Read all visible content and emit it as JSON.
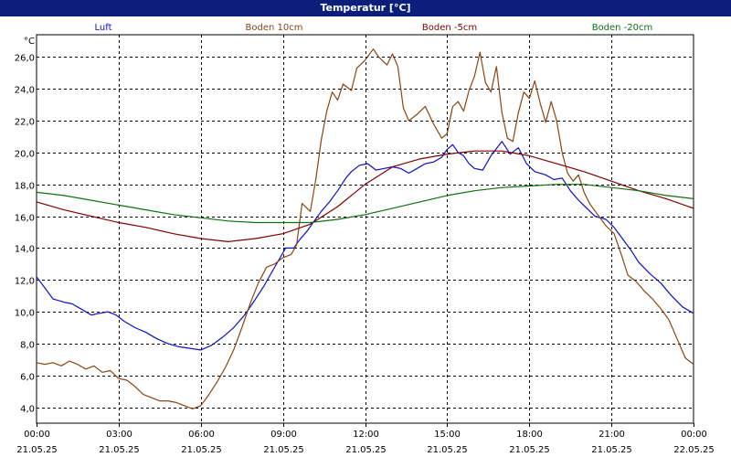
{
  "window": {
    "title": "Temperatur [°C]"
  },
  "chart_data": {
    "type": "line",
    "title": "Temperatur [°C]",
    "ylabel": "°C",
    "xlabel": "",
    "ylim": [
      3.0,
      27.4
    ],
    "xlim": [
      0,
      24
    ],
    "grid": true,
    "yticks": [
      4,
      6,
      8,
      10,
      12,
      14,
      16,
      18,
      20,
      22,
      24,
      26
    ],
    "ytick_labels": [
      "4,0",
      "6,0",
      "8,0",
      "10,0",
      "12,0",
      "14,0",
      "16,0",
      "18,0",
      "20,0",
      "22,0",
      "24,0",
      "26,0"
    ],
    "xticks": [
      {
        "h": 0,
        "time": "00:00",
        "date": "21.05.25"
      },
      {
        "h": 3,
        "time": "03:00",
        "date": "21.05.25"
      },
      {
        "h": 6,
        "time": "06:00",
        "date": "21.05.25"
      },
      {
        "h": 9,
        "time": "09:00",
        "date": "21.05.25"
      },
      {
        "h": 12,
        "time": "12:00",
        "date": "21.05.25"
      },
      {
        "h": 15,
        "time": "15:00",
        "date": "21.05.25"
      },
      {
        "h": 18,
        "time": "18:00",
        "date": "21.05.25"
      },
      {
        "h": 21,
        "time": "21:00",
        "date": "21.05.25"
      },
      {
        "h": 24,
        "time": "00:00",
        "date": "22.05.25"
      }
    ],
    "series": [
      {
        "name": "Luft",
        "color": "#1010c8",
        "points": [
          [
            0,
            12.2
          ],
          [
            0.3,
            11.5
          ],
          [
            0.6,
            10.8
          ],
          [
            1,
            10.6
          ],
          [
            1.3,
            10.5
          ],
          [
            1.7,
            10.1
          ],
          [
            2,
            9.8
          ],
          [
            2.3,
            9.9
          ],
          [
            2.6,
            10.0
          ],
          [
            2.9,
            9.8
          ],
          [
            3.2,
            9.4
          ],
          [
            3.6,
            9.0
          ],
          [
            4,
            8.7
          ],
          [
            4.4,
            8.3
          ],
          [
            4.8,
            8.0
          ],
          [
            5.2,
            7.8
          ],
          [
            5.6,
            7.7
          ],
          [
            6,
            7.6
          ],
          [
            6.4,
            7.9
          ],
          [
            6.8,
            8.4
          ],
          [
            7.2,
            9.0
          ],
          [
            7.6,
            9.8
          ],
          [
            8,
            10.8
          ],
          [
            8.3,
            11.6
          ],
          [
            8.6,
            12.5
          ],
          [
            8.9,
            13.4
          ],
          [
            9.1,
            14.0
          ],
          [
            9.4,
            14.0
          ],
          [
            9.6,
            14.5
          ],
          [
            9.9,
            15.1
          ],
          [
            10.1,
            15.6
          ],
          [
            10.4,
            16.3
          ],
          [
            10.7,
            16.9
          ],
          [
            11.0,
            17.6
          ],
          [
            11.3,
            18.4
          ],
          [
            11.5,
            18.8
          ],
          [
            11.8,
            19.2
          ],
          [
            12.1,
            19.3
          ],
          [
            12.4,
            18.9
          ],
          [
            12.7,
            19.0
          ],
          [
            13.0,
            19.1
          ],
          [
            13.3,
            19.0
          ],
          [
            13.6,
            18.7
          ],
          [
            13.9,
            19.0
          ],
          [
            14.2,
            19.3
          ],
          [
            14.5,
            19.4
          ],
          [
            14.8,
            19.7
          ],
          [
            15.0,
            20.2
          ],
          [
            15.2,
            20.5
          ],
          [
            15.4,
            20.0
          ],
          [
            15.6,
            19.8
          ],
          [
            15.8,
            19.3
          ],
          [
            16.0,
            19.0
          ],
          [
            16.3,
            18.9
          ],
          [
            16.6,
            19.8
          ],
          [
            17.0,
            20.7
          ],
          [
            17.3,
            19.9
          ],
          [
            17.6,
            20.3
          ],
          [
            17.9,
            19.3
          ],
          [
            18.2,
            18.8
          ],
          [
            18.6,
            18.6
          ],
          [
            18.9,
            18.3
          ],
          [
            19.2,
            18.4
          ],
          [
            19.5,
            17.6
          ],
          [
            19.8,
            17.0
          ],
          [
            20.1,
            16.5
          ],
          [
            20.4,
            16.0
          ],
          [
            20.8,
            15.8
          ],
          [
            21.1,
            15.3
          ],
          [
            21.4,
            14.6
          ],
          [
            21.7,
            13.9
          ],
          [
            22.0,
            13.1
          ],
          [
            22.4,
            12.4
          ],
          [
            22.8,
            11.8
          ],
          [
            23.2,
            11.0
          ],
          [
            23.6,
            10.3
          ],
          [
            24.0,
            9.9
          ]
        ]
      },
      {
        "name": "Boden 10cm",
        "color": "#8b4513",
        "points": [
          [
            0,
            6.8
          ],
          [
            0.3,
            6.7
          ],
          [
            0.6,
            6.8
          ],
          [
            0.9,
            6.6
          ],
          [
            1.2,
            6.9
          ],
          [
            1.5,
            6.7
          ],
          [
            1.8,
            6.4
          ],
          [
            2.1,
            6.6
          ],
          [
            2.4,
            6.2
          ],
          [
            2.7,
            6.3
          ],
          [
            3.0,
            5.8
          ],
          [
            3.3,
            5.7
          ],
          [
            3.6,
            5.3
          ],
          [
            3.9,
            4.8
          ],
          [
            4.2,
            4.6
          ],
          [
            4.5,
            4.4
          ],
          [
            4.8,
            4.4
          ],
          [
            5.1,
            4.3
          ],
          [
            5.4,
            4.1
          ],
          [
            5.7,
            3.9
          ],
          [
            6.0,
            4.1
          ],
          [
            6.3,
            4.8
          ],
          [
            6.6,
            5.6
          ],
          [
            6.9,
            6.5
          ],
          [
            7.2,
            7.6
          ],
          [
            7.5,
            9.0
          ],
          [
            7.8,
            10.5
          ],
          [
            8.1,
            11.8
          ],
          [
            8.4,
            12.8
          ],
          [
            8.7,
            13.0
          ],
          [
            9.0,
            13.4
          ],
          [
            9.3,
            13.6
          ],
          [
            9.5,
            14.2
          ],
          [
            9.7,
            16.8
          ],
          [
            10.0,
            16.3
          ],
          [
            10.2,
            18.3
          ],
          [
            10.4,
            20.8
          ],
          [
            10.6,
            22.6
          ],
          [
            10.8,
            23.8
          ],
          [
            11.0,
            23.3
          ],
          [
            11.2,
            24.3
          ],
          [
            11.5,
            23.9
          ],
          [
            11.7,
            25.3
          ],
          [
            12.0,
            25.8
          ],
          [
            12.3,
            26.5
          ],
          [
            12.5,
            26.0
          ],
          [
            12.8,
            25.5
          ],
          [
            13.0,
            26.2
          ],
          [
            13.2,
            25.4
          ],
          [
            13.4,
            22.8
          ],
          [
            13.6,
            22.0
          ],
          [
            13.9,
            22.4
          ],
          [
            14.2,
            22.9
          ],
          [
            14.5,
            21.8
          ],
          [
            14.8,
            20.9
          ],
          [
            15.0,
            21.2
          ],
          [
            15.2,
            22.9
          ],
          [
            15.4,
            23.2
          ],
          [
            15.6,
            22.6
          ],
          [
            15.8,
            23.9
          ],
          [
            16.0,
            24.8
          ],
          [
            16.2,
            26.3
          ],
          [
            16.4,
            24.4
          ],
          [
            16.6,
            23.8
          ],
          [
            16.8,
            25.4
          ],
          [
            17.0,
            22.5
          ],
          [
            17.2,
            20.9
          ],
          [
            17.4,
            20.7
          ],
          [
            17.6,
            22.5
          ],
          [
            17.8,
            23.8
          ],
          [
            18.0,
            23.4
          ],
          [
            18.2,
            24.5
          ],
          [
            18.4,
            23.1
          ],
          [
            18.6,
            21.9
          ],
          [
            18.8,
            23.2
          ],
          [
            19.0,
            22.0
          ],
          [
            19.2,
            20.0
          ],
          [
            19.4,
            18.7
          ],
          [
            19.6,
            18.2
          ],
          [
            19.8,
            18.6
          ],
          [
            20.0,
            17.5
          ],
          [
            20.2,
            16.8
          ],
          [
            20.5,
            16.1
          ],
          [
            20.8,
            15.4
          ],
          [
            21.1,
            14.9
          ],
          [
            21.4,
            13.4
          ],
          [
            21.6,
            12.3
          ],
          [
            21.9,
            11.9
          ],
          [
            22.2,
            11.3
          ],
          [
            22.5,
            10.8
          ],
          [
            22.8,
            10.2
          ],
          [
            23.1,
            9.5
          ],
          [
            23.4,
            8.3
          ],
          [
            23.7,
            7.1
          ],
          [
            24.0,
            6.7
          ]
        ]
      },
      {
        "name": "Boden -5cm",
        "color": "#800000",
        "points": [
          [
            0,
            16.9
          ],
          [
            1,
            16.4
          ],
          [
            2,
            16.0
          ],
          [
            3,
            15.6
          ],
          [
            4,
            15.3
          ],
          [
            5,
            14.9
          ],
          [
            6,
            14.6
          ],
          [
            7,
            14.4
          ],
          [
            8,
            14.6
          ],
          [
            9,
            14.9
          ],
          [
            10,
            15.5
          ],
          [
            11,
            16.6
          ],
          [
            12,
            18.0
          ],
          [
            13,
            19.1
          ],
          [
            14,
            19.6
          ],
          [
            15,
            19.9
          ],
          [
            16,
            20.1
          ],
          [
            17,
            20.1
          ],
          [
            18,
            19.8
          ],
          [
            19,
            19.3
          ],
          [
            20,
            18.8
          ],
          [
            21,
            18.2
          ],
          [
            22,
            17.6
          ],
          [
            23,
            17.1
          ],
          [
            24,
            16.5
          ]
        ]
      },
      {
        "name": "Boden -20cm",
        "color": "#107010",
        "points": [
          [
            0,
            17.5
          ],
          [
            1,
            17.3
          ],
          [
            2,
            17.0
          ],
          [
            3,
            16.7
          ],
          [
            4,
            16.4
          ],
          [
            5,
            16.1
          ],
          [
            6,
            15.9
          ],
          [
            7,
            15.7
          ],
          [
            8,
            15.6
          ],
          [
            9,
            15.6
          ],
          [
            10,
            15.6
          ],
          [
            11,
            15.8
          ],
          [
            12,
            16.1
          ],
          [
            13,
            16.5
          ],
          [
            14,
            16.9
          ],
          [
            15,
            17.3
          ],
          [
            16,
            17.6
          ],
          [
            17,
            17.8
          ],
          [
            18,
            17.9
          ],
          [
            19,
            18.0
          ],
          [
            20,
            18.0
          ],
          [
            21,
            17.8
          ],
          [
            22,
            17.6
          ],
          [
            23,
            17.3
          ],
          [
            24,
            17.1
          ]
        ]
      }
    ]
  }
}
